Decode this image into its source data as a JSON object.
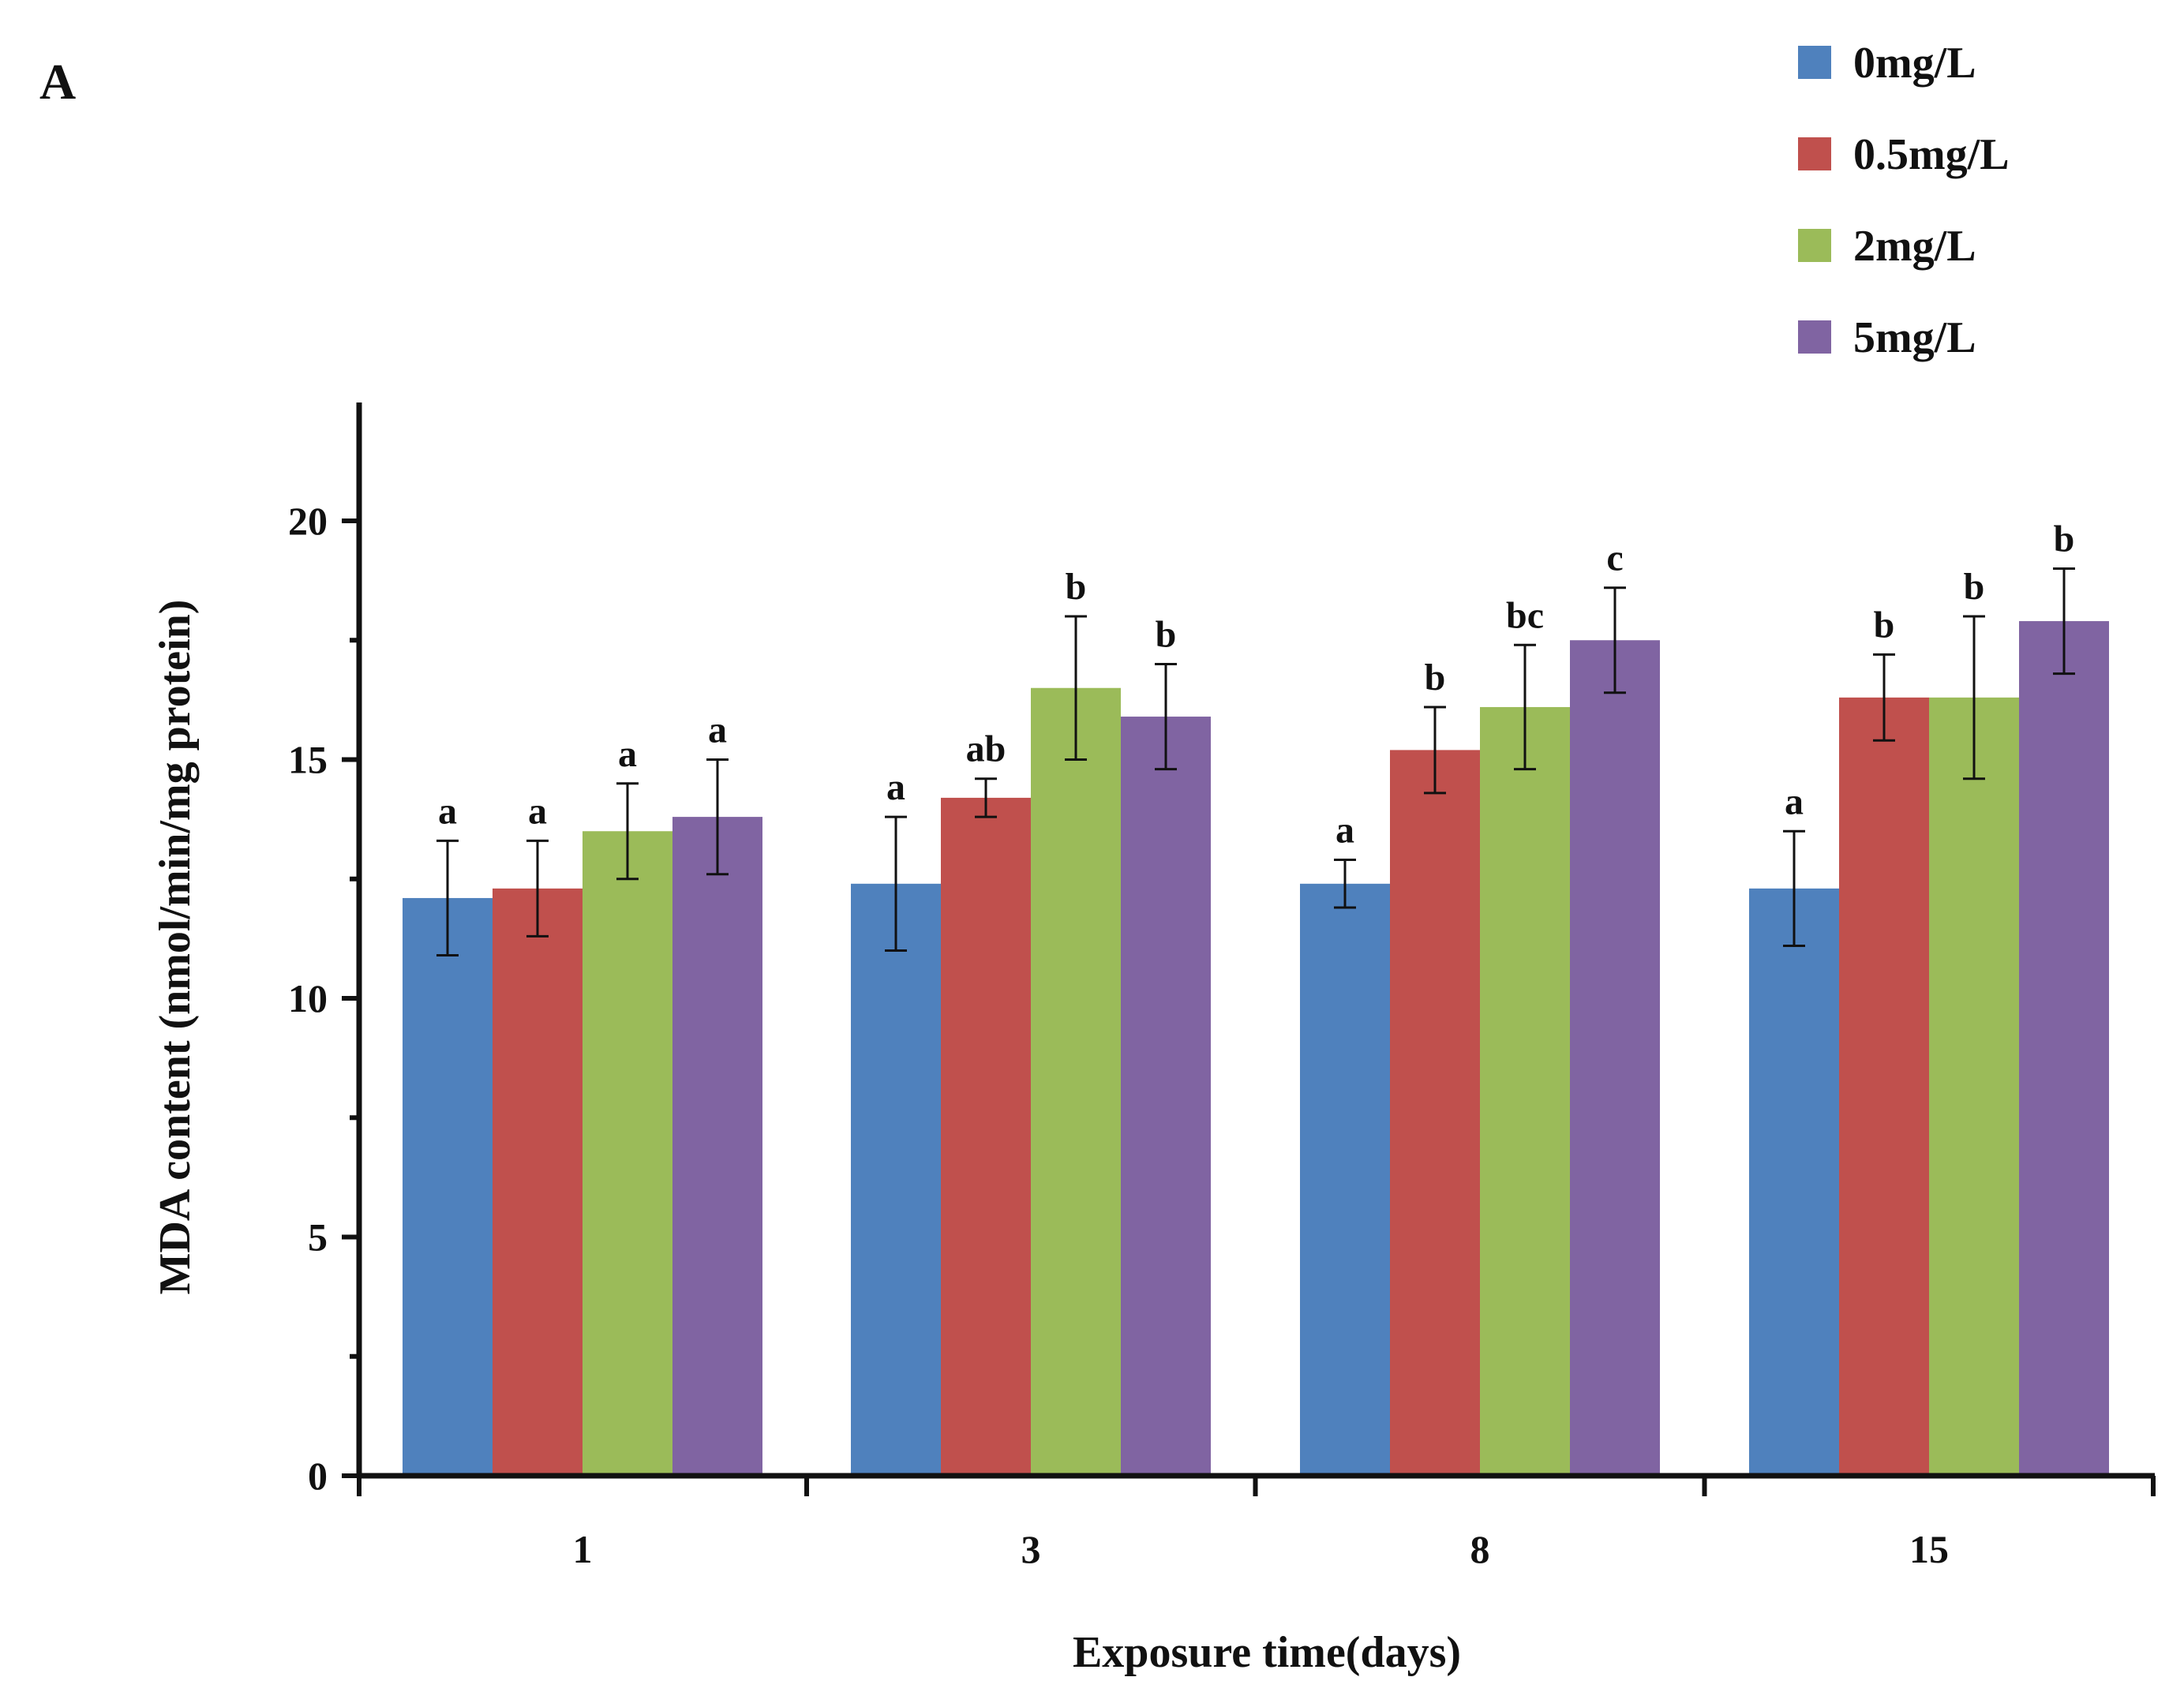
{
  "chart_data": {
    "type": "bar",
    "panel_label": "A",
    "title": "",
    "xlabel": "Exposure time(days)",
    "ylabel": "MDA content (nmol/min/mg protein)",
    "ylim": [
      0,
      22.5
    ],
    "yticks": [
      0,
      5,
      10,
      15,
      20
    ],
    "grid": false,
    "legend_position": "top-right",
    "categories": [
      "1",
      "3",
      "8",
      "15"
    ],
    "series": [
      {
        "name": "0mg/L",
        "color": "#4f81bd",
        "values": [
          12.1,
          12.4,
          12.4,
          12.3
        ],
        "errors": [
          1.2,
          1.4,
          0.5,
          1.2
        ],
        "labels": [
          "a",
          "a",
          "a",
          "a"
        ]
      },
      {
        "name": "0.5mg/L",
        "color": "#c0504d",
        "values": [
          12.3,
          14.2,
          15.2,
          16.3
        ],
        "errors": [
          1.0,
          0.4,
          0.9,
          0.9
        ],
        "labels": [
          "a",
          "ab",
          "b",
          "b"
        ]
      },
      {
        "name": "2mg/L",
        "color": "#9bbb59",
        "values": [
          13.5,
          16.5,
          16.1,
          16.3
        ],
        "errors": [
          1.0,
          1.5,
          1.3,
          1.7
        ],
        "labels": [
          "a",
          "b",
          "bc",
          "b"
        ]
      },
      {
        "name": "5mg/L",
        "color": "#8064a2",
        "values": [
          13.8,
          15.9,
          17.5,
          17.9
        ],
        "errors": [
          1.2,
          1.1,
          1.1,
          1.1
        ],
        "labels": [
          "a",
          "b",
          "c",
          "b"
        ]
      }
    ]
  }
}
